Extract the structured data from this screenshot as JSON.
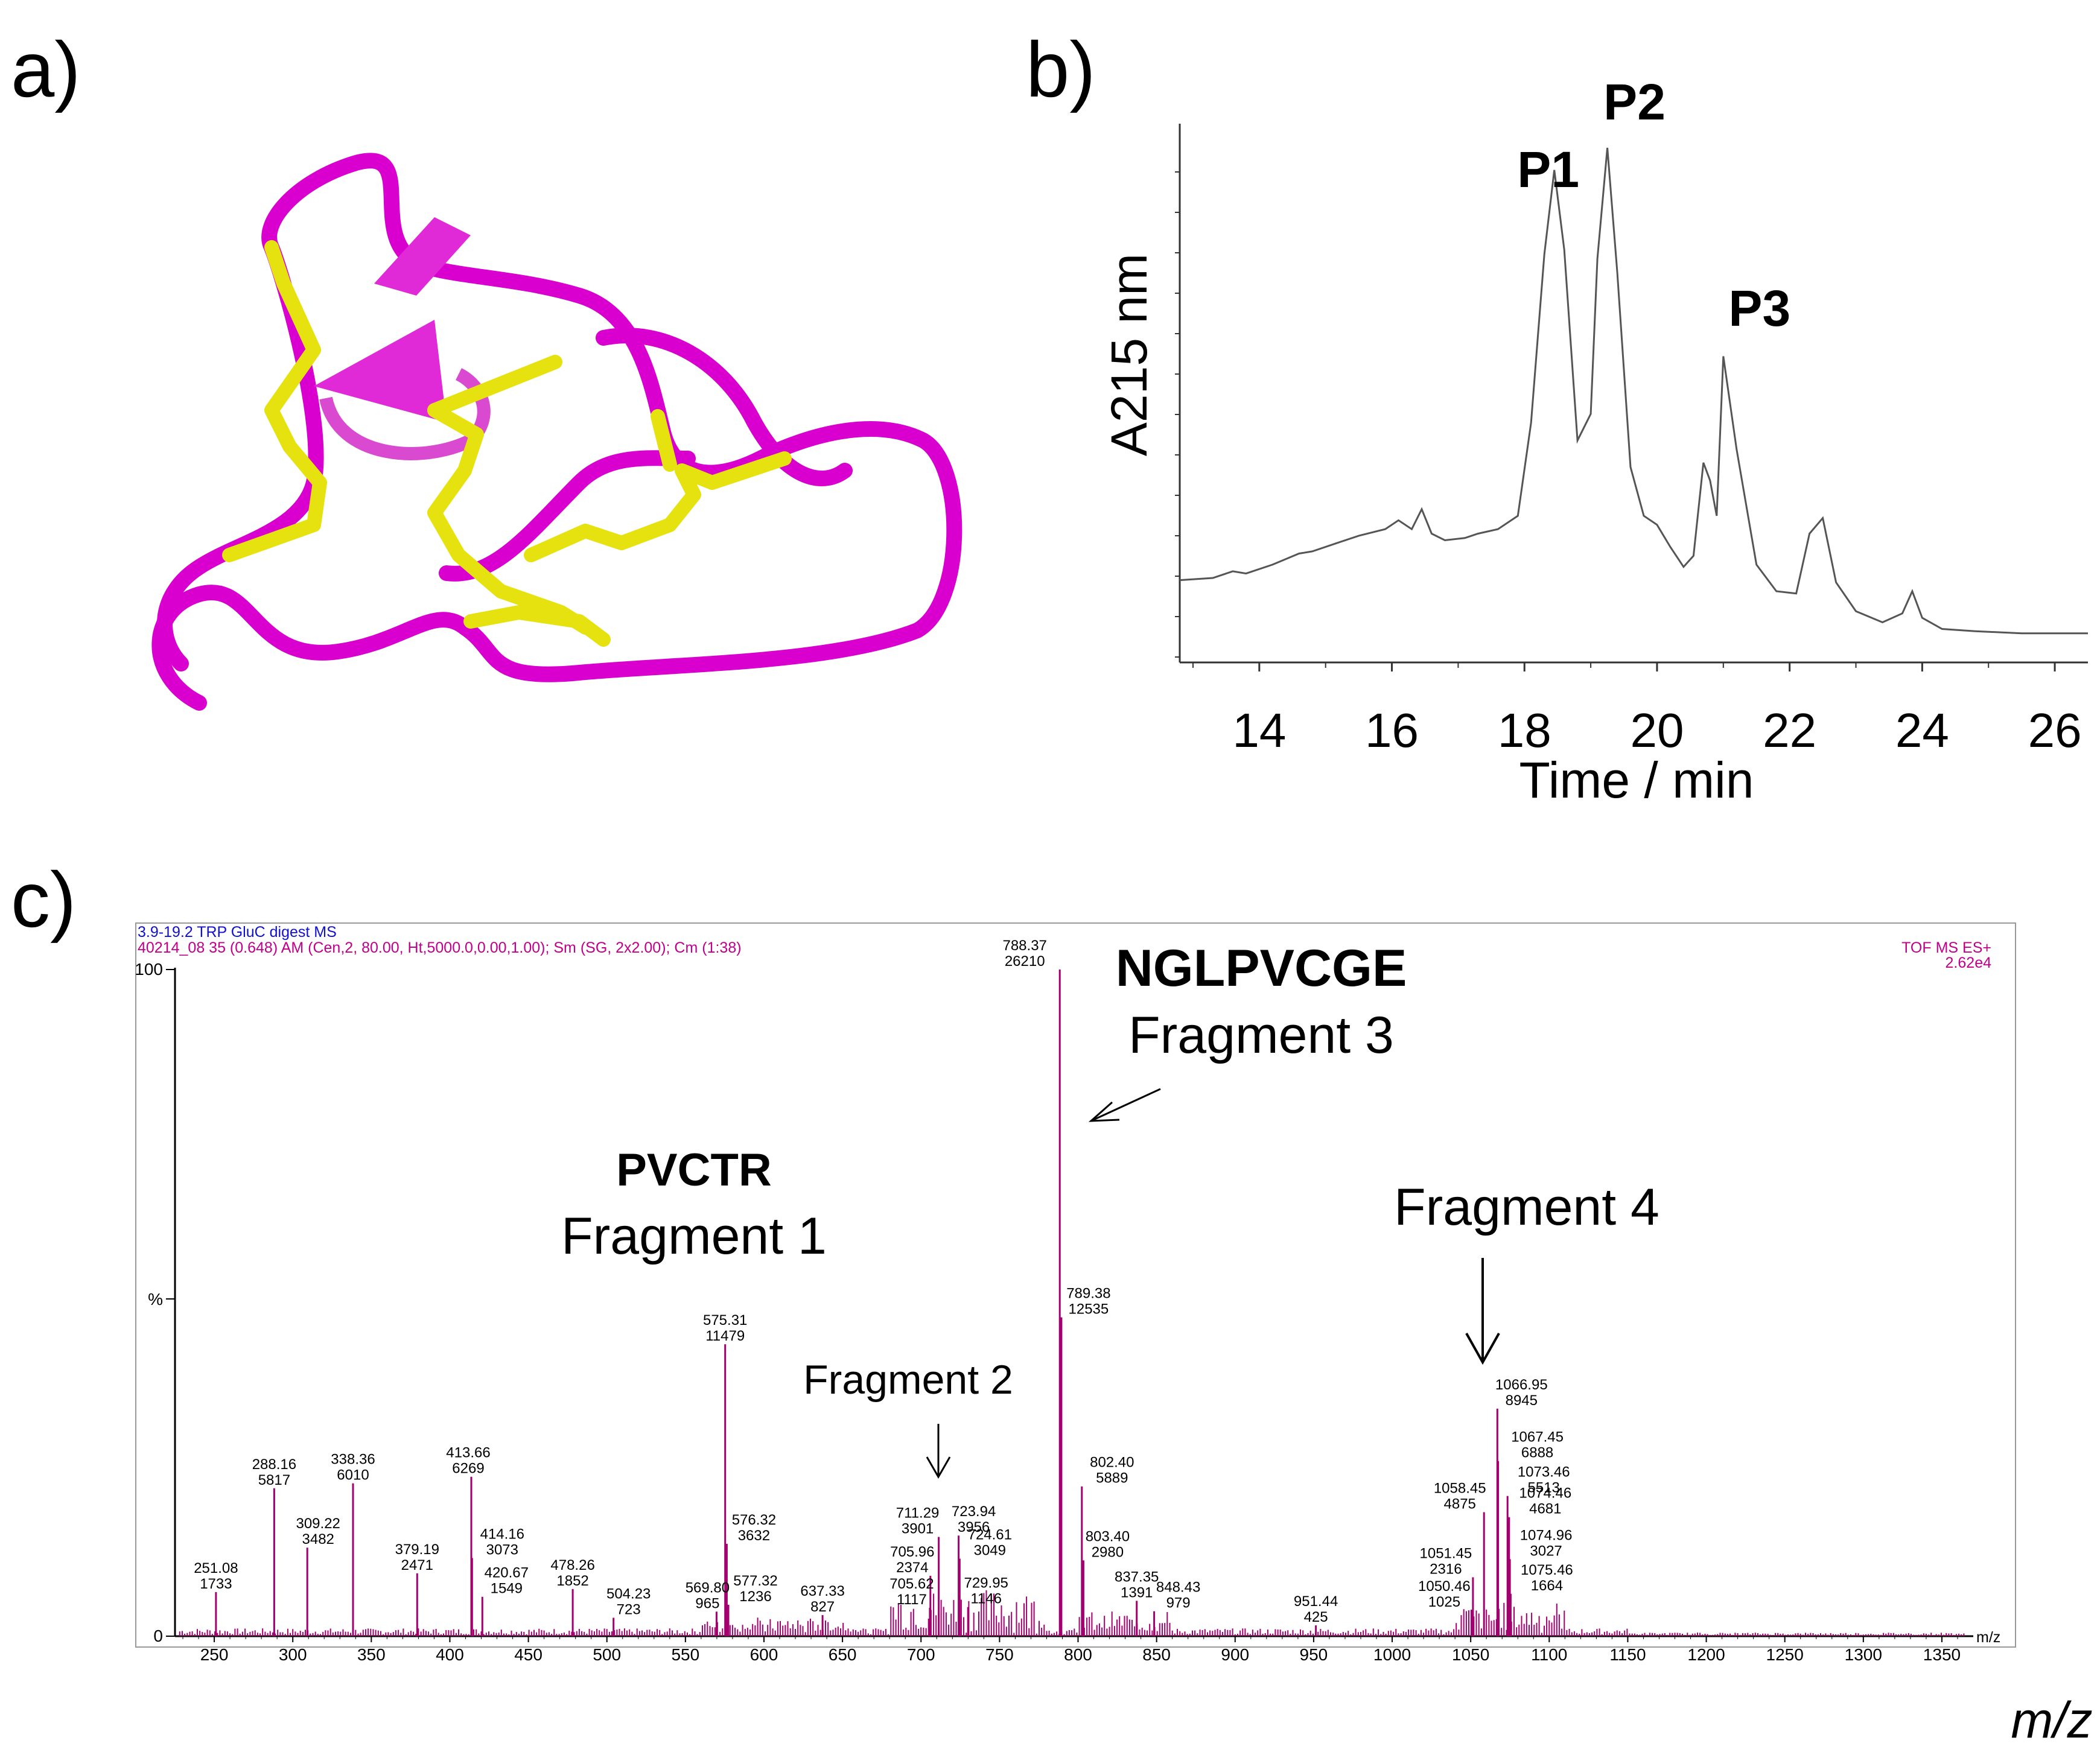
{
  "panels": {
    "a": {
      "label": "a)"
    },
    "b": {
      "label": "b)"
    },
    "c": {
      "label": "c)"
    }
  },
  "colors": {
    "backbone": "#ff00ff",
    "disulfide": "#e5e20f",
    "trace": "#555555",
    "spectrum": "#a3006f",
    "header_blue": "#1010d0"
  },
  "chart_data": [
    {
      "type": "line",
      "panel": "b",
      "xlabel": "Time / min",
      "ylabel": "A215 nm",
      "xlim": [
        12.8,
        26.5
      ],
      "xticks": [
        "14",
        "16",
        "18",
        "20",
        "22",
        "24",
        "26"
      ],
      "peaks": [
        {
          "label": "P1",
          "x": 18.45
        },
        {
          "label": "P2",
          "x": 19.25
        },
        {
          "label": "P3",
          "x": 21.0
        }
      ],
      "series": [
        {
          "x": [
            12.8,
            13.3,
            13.6,
            13.8,
            14.2,
            14.6,
            14.8,
            15.2,
            15.5,
            15.9,
            16.1,
            16.3,
            16.45,
            16.6,
            16.8,
            17.1,
            17.3,
            17.6,
            17.9,
            18.1,
            18.3,
            18.45,
            18.6,
            18.8,
            19.0,
            19.1,
            19.25,
            19.4,
            19.6,
            19.8,
            20.0,
            20.2,
            20.4,
            20.55,
            20.7,
            20.8,
            20.9,
            21.0,
            21.2,
            21.5,
            21.8,
            22.1,
            22.3,
            22.5,
            22.7,
            23.0,
            23.4,
            23.7,
            23.85,
            24.0,
            24.3,
            24.8,
            25.5,
            26.5
          ],
          "y": [
            0.025,
            0.03,
            0.045,
            0.04,
            0.06,
            0.085,
            0.09,
            0.11,
            0.125,
            0.14,
            0.16,
            0.14,
            0.185,
            0.13,
            0.115,
            0.12,
            0.13,
            0.14,
            0.17,
            0.38,
            0.76,
            0.95,
            0.77,
            0.34,
            0.4,
            0.75,
            1.0,
            0.72,
            0.28,
            0.17,
            0.15,
            0.1,
            0.055,
            0.08,
            0.29,
            0.25,
            0.17,
            0.53,
            0.32,
            0.06,
            0.0,
            -0.005,
            0.13,
            0.165,
            0.02,
            -0.045,
            -0.07,
            -0.05,
            0.0,
            -0.06,
            -0.085,
            -0.09,
            -0.095,
            -0.095
          ]
        }
      ]
    },
    {
      "type": "bar",
      "panel": "c",
      "header_line1": "3.9-19.2 TRP GluC digest MS",
      "header_line2": "40214_08 35 (0.648) AM (Cen,2, 80.00, Ht,5000.0,0.00,1.00); Sm (SG, 2x2.00); Cm (1:38)",
      "header_right1": "TOF MS ES+",
      "header_right2": "2.62e4",
      "xlabel": "m/z",
      "axis_unit": "m/z",
      "xlim": [
        225,
        1370
      ],
      "ylim": [
        0,
        100
      ],
      "y_top_label": "100",
      "y_mid_label": "%",
      "y_zero_label": "0",
      "xticks": [
        "250",
        "300",
        "350",
        "400",
        "450",
        "500",
        "550",
        "600",
        "650",
        "700",
        "750",
        "800",
        "850",
        "900",
        "950",
        "1000",
        "1050",
        "1100",
        "1150",
        "1200",
        "1250",
        "1300",
        "1350"
      ],
      "peaks": [
        {
          "mz": "251.08",
          "intensity": "1733"
        },
        {
          "mz": "288.16",
          "intensity": "5817"
        },
        {
          "mz": "309.22",
          "intensity": "3482"
        },
        {
          "mz": "338.36",
          "intensity": "6010"
        },
        {
          "mz": "379.19",
          "intensity": "2471"
        },
        {
          "mz": "413.66",
          "intensity": "6269"
        },
        {
          "mz": "414.16",
          "intensity": "3073"
        },
        {
          "mz": "420.67",
          "intensity": "1549"
        },
        {
          "mz": "478.26",
          "intensity": "1852"
        },
        {
          "mz": "504.23",
          "intensity": "723"
        },
        {
          "mz": "569.80",
          "intensity": "965"
        },
        {
          "mz": "575.31",
          "intensity": "11479"
        },
        {
          "mz": "576.32",
          "intensity": "3632"
        },
        {
          "mz": "577.32",
          "intensity": "1236"
        },
        {
          "mz": "637.33",
          "intensity": "827"
        },
        {
          "mz": "705.62",
          "intensity": "1117"
        },
        {
          "mz": "705.96",
          "intensity": "2374"
        },
        {
          "mz": "711.29",
          "intensity": "3901"
        },
        {
          "mz": "723.94",
          "intensity": "3956"
        },
        {
          "mz": "724.61",
          "intensity": "3049"
        },
        {
          "mz": "729.95",
          "intensity": "1146"
        },
        {
          "mz": "788.37",
          "intensity": "26210"
        },
        {
          "mz": "789.38",
          "intensity": "12535"
        },
        {
          "mz": "802.40",
          "intensity": "5889"
        },
        {
          "mz": "803.40",
          "intensity": "2980"
        },
        {
          "mz": "837.35",
          "intensity": "1391"
        },
        {
          "mz": "848.43",
          "intensity": "979"
        },
        {
          "mz": "951.44",
          "intensity": "425"
        },
        {
          "mz": "1050.46",
          "intensity": "1025"
        },
        {
          "mz": "1051.45",
          "intensity": "2316"
        },
        {
          "mz": "1058.45",
          "intensity": "4875"
        },
        {
          "mz": "1066.95",
          "intensity": "8945"
        },
        {
          "mz": "1067.45",
          "intensity": "6888"
        },
        {
          "mz": "1073.46",
          "intensity": "5513"
        },
        {
          "mz": "1074.46",
          "intensity": "4681"
        },
        {
          "mz": "1074.96",
          "intensity": "3027"
        },
        {
          "mz": "1075.46",
          "intensity": "1664"
        }
      ],
      "annotations": [
        {
          "seq": "PVCTR",
          "label": "Fragment 1"
        },
        {
          "label": "Fragment 2"
        },
        {
          "seq": "NGLPVCGE",
          "label": "Fragment 3"
        },
        {
          "label": "Fragment 4"
        }
      ]
    }
  ]
}
